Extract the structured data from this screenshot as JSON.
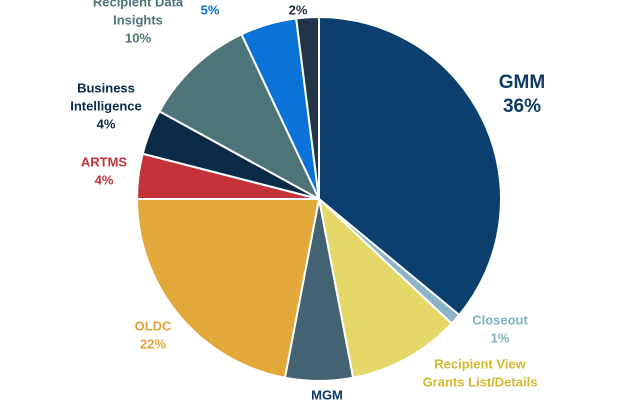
{
  "chart_data": {
    "type": "pie",
    "start_angle_deg": 0,
    "direction": "clockwise",
    "slices": [
      {
        "label": "GMM",
        "value_text": "36%",
        "value": 36,
        "color": "#0b3f6e",
        "label_color": "#0d3a66"
      },
      {
        "label": "Closeout",
        "value_text": "1%",
        "value": 1,
        "color": "#8ab4c8",
        "label_color": "#7fb0c4"
      },
      {
        "label": "Recipient View\nGrants List/Details",
        "value_text": "",
        "value": 10,
        "color": "#e3d868",
        "label_color": "#d4b82e"
      },
      {
        "label": "MGM",
        "value_text": "",
        "value": 6,
        "color": "#436373",
        "label_color": "#0d3a66"
      },
      {
        "label": "OLDC",
        "value_text": "22%",
        "value": 22,
        "color": "#e3a83a",
        "label_color": "#e3a43a"
      },
      {
        "label": "ARTMS",
        "value_text": "4%",
        "value": 4,
        "color": "#c5333a",
        "label_color": "#c5333a"
      },
      {
        "label": "Business\nIntelligence",
        "value_text": "4%",
        "value": 4,
        "color": "#0b2a48",
        "label_color": "#0b2a48"
      },
      {
        "label": "Recipient Data\nInsights",
        "value_text": "10%",
        "value": 10,
        "color": "#4d7478",
        "label_color": "#4d7478"
      },
      {
        "label": "",
        "value_text": "5%",
        "value": 5,
        "color": "#0b73d8",
        "label_color": "#0b73d8"
      },
      {
        "label": "",
        "value_text": "2%",
        "value": 2,
        "color": "#223447",
        "label_color": "#223447"
      }
    ]
  }
}
